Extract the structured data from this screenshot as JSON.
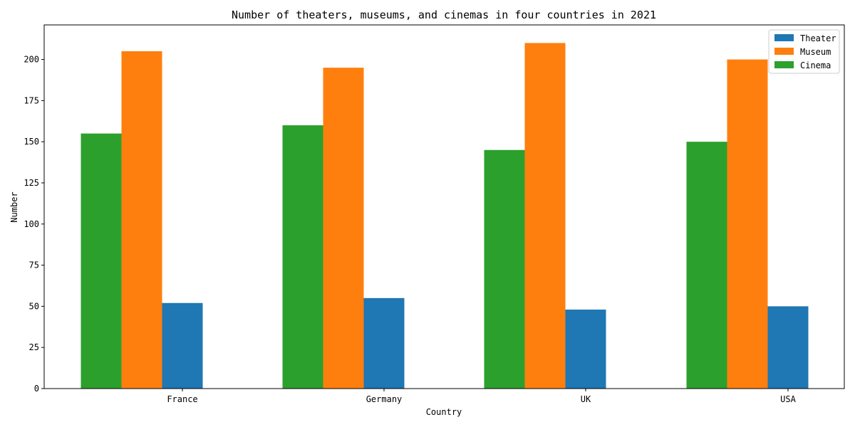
{
  "chart_data": {
    "type": "bar",
    "title": "Number of theaters, museums, and cinemas in four countries in 2021",
    "xlabel": "Country",
    "ylabel": "Number",
    "categories": [
      "France",
      "Germany",
      "UK",
      "USA"
    ],
    "series": [
      {
        "name": "Cinema",
        "color": "#2ca02c",
        "values": [
          155,
          160,
          145,
          150
        ]
      },
      {
        "name": "Museum",
        "color": "#ff7f0e",
        "values": [
          205,
          195,
          210,
          200
        ]
      },
      {
        "name": "Theater",
        "color": "#1f77b4",
        "values": [
          52,
          55,
          48,
          50
        ]
      }
    ],
    "bar_order": [
      "Cinema",
      "Museum",
      "Theater"
    ],
    "legend_order": [
      "Theater",
      "Museum",
      "Cinema"
    ],
    "legend_position": "top-right",
    "ylim": [
      0,
      221
    ],
    "yticks": [
      0,
      25,
      50,
      75,
      100,
      125,
      150,
      175,
      200
    ],
    "grid": false
  }
}
